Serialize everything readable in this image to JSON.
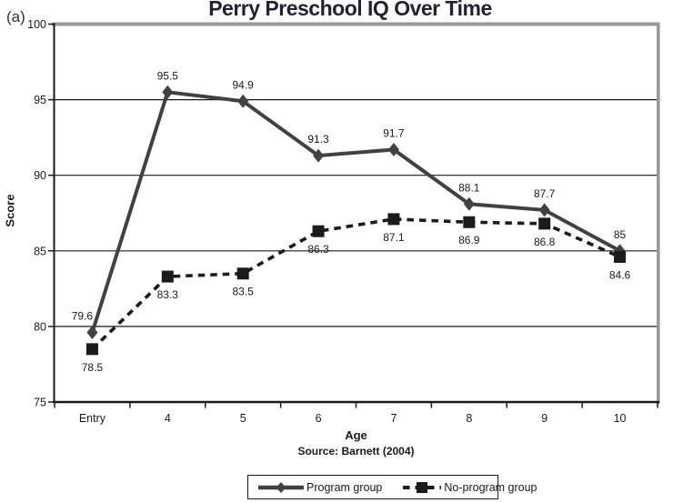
{
  "chart_data": {
    "type": "line",
    "panel_label": "(a)",
    "title": "Perry Preschool IQ Over Time",
    "xlabel": "Age",
    "ylabel": "Score",
    "source": "Source: Barnett (2004)",
    "categories": [
      "Entry",
      "4",
      "5",
      "6",
      "7",
      "8",
      "9",
      "10"
    ],
    "yticks": [
      75,
      80,
      85,
      90,
      95,
      100
    ],
    "ylim": [
      75,
      100
    ],
    "grid": true,
    "legend_position": "bottom",
    "colors": {
      "program_line": "#414042",
      "no_program_line": "#1b1b1b",
      "gridline": "#1a1a1a",
      "axis": "#1a1a1a",
      "border_gray": "#97989c",
      "title_text": "#232233"
    },
    "series": [
      {
        "name": "Program group",
        "marker": "diamond",
        "line_style": "solid",
        "label_position": "above",
        "values": [
          79.6,
          95.5,
          94.9,
          91.3,
          91.7,
          88.1,
          87.7,
          85
        ]
      },
      {
        "name": "No-program group",
        "marker": "square",
        "line_style": "dashed",
        "label_position": "below",
        "values": [
          78.5,
          83.3,
          83.5,
          86.3,
          87.1,
          86.9,
          86.8,
          84.6
        ]
      }
    ]
  }
}
